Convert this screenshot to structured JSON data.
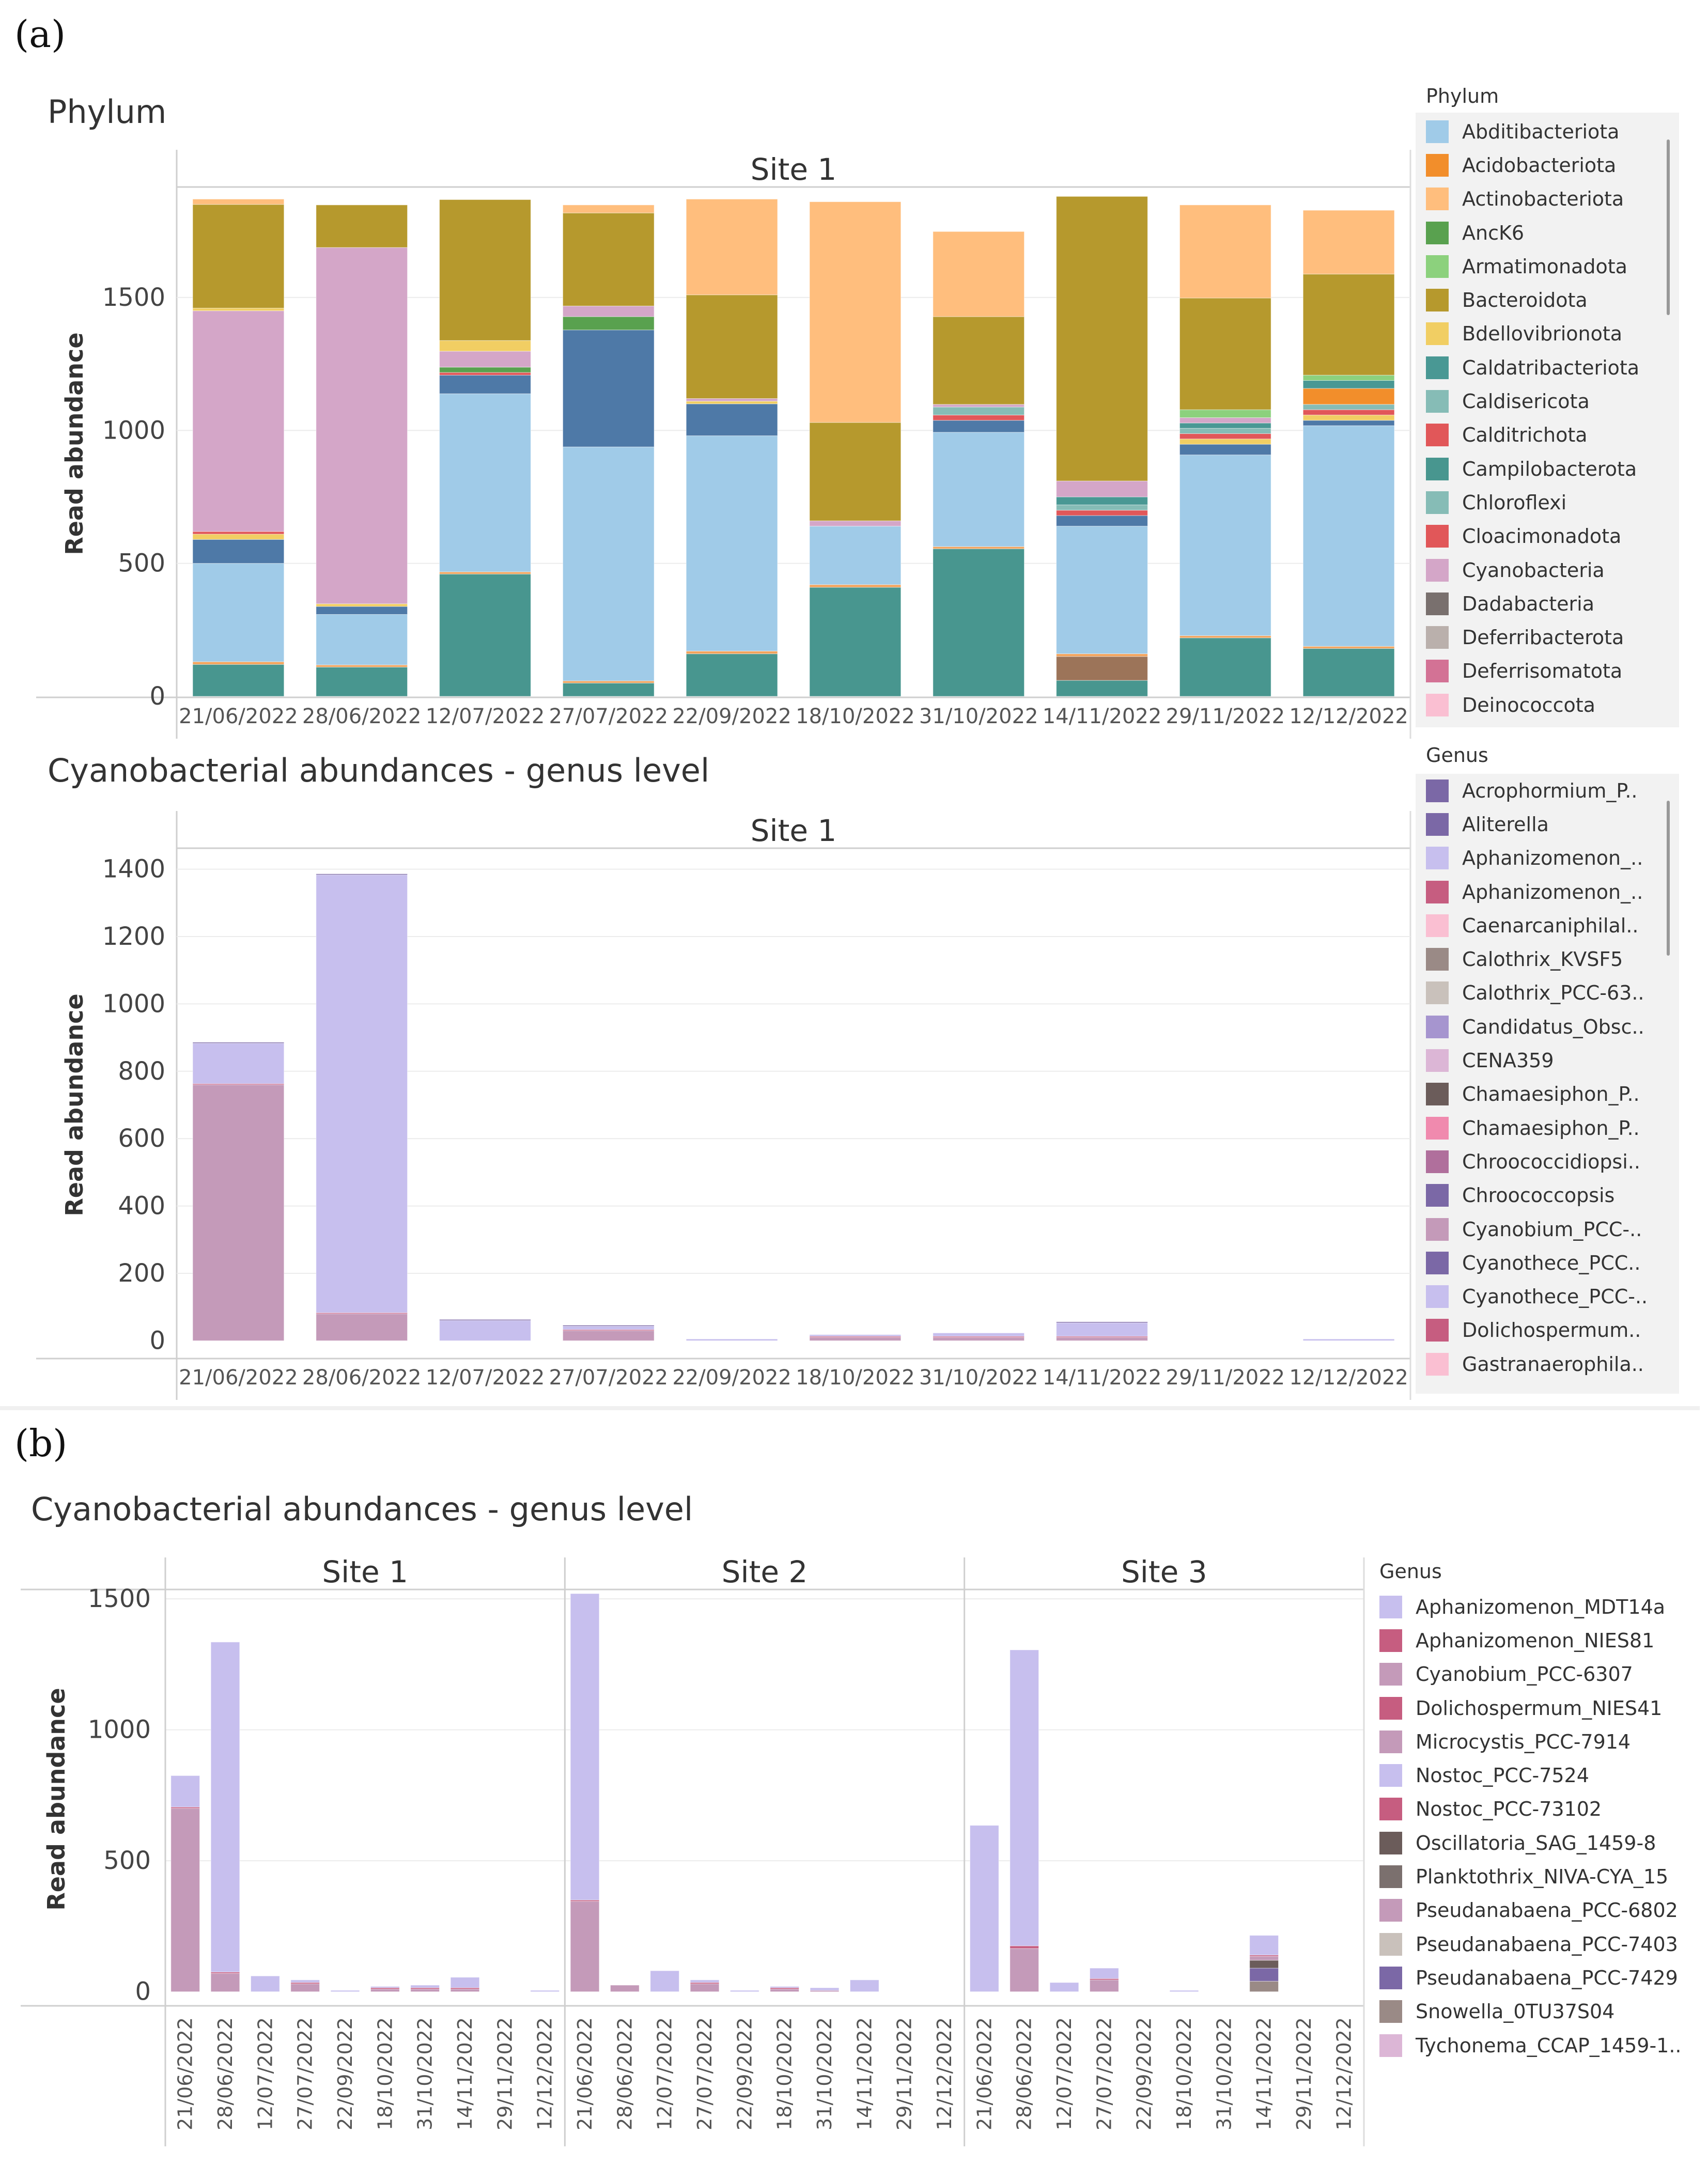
{
  "panel_a": {
    "label": "(a)"
  },
  "panel_b": {
    "label": "(b)"
  },
  "chart_data": [
    {
      "id": "phylum",
      "type": "bar",
      "stacked": true,
      "title": "Phylum",
      "facet": "Site 1",
      "ylabel": "Read abundance",
      "ylim": [
        0,
        1900
      ],
      "yticks": [
        0,
        500,
        1000,
        1500
      ],
      "categories": [
        "21/06/2022",
        "28/06/2022",
        "12/07/2022",
        "27/07/2022",
        "22/09/2022",
        "18/10/2022",
        "31/10/2022",
        "14/11/2022",
        "29/11/2022",
        "12/12/2022"
      ],
      "series": [
        {
          "name": "Campilobacterota",
          "color": "#48968F",
          "values": [
            120,
            110,
            460,
            50,
            160,
            410,
            555,
            60,
            220,
            180
          ]
        },
        {
          "name": "Dadabacteria",
          "color": "#9C7459",
          "values": [
            0,
            0,
            0,
            0,
            0,
            0,
            0,
            90,
            0,
            0
          ]
        },
        {
          "name": "Actinobacteriota",
          "color": "#F2A35C",
          "values": [
            10,
            8,
            8,
            8,
            10,
            10,
            8,
            10,
            8,
            8
          ]
        },
        {
          "name": "Abditibacteriota",
          "color": "#A0CBE8",
          "values": [
            370,
            190,
            670,
            880,
            810,
            220,
            430,
            480,
            680,
            830
          ]
        },
        {
          "name": "Armatimonadota",
          "color": "#4E79A7",
          "values": [
            90,
            30,
            70,
            440,
            120,
            0,
            45,
            40,
            40,
            20
          ]
        },
        {
          "name": "Bdellovibrionota",
          "color": "#F1CE63",
          "values": [
            20,
            10,
            0,
            0,
            10,
            0,
            0,
            0,
            20,
            20
          ]
        },
        {
          "name": "Calditrichota",
          "color": "#E15759",
          "values": [
            10,
            0,
            10,
            0,
            0,
            0,
            20,
            20,
            20,
            20
          ]
        },
        {
          "name": "AncK6",
          "color": "#59A14F",
          "values": [
            0,
            0,
            20,
            50,
            0,
            0,
            0,
            0,
            0,
            0
          ]
        },
        {
          "name": "Caldisericota",
          "color": "#86BCB6",
          "values": [
            0,
            0,
            0,
            0,
            0,
            0,
            30,
            20,
            20,
            20
          ]
        },
        {
          "name": "Acidobacteriota",
          "color": "#F28E2B",
          "values": [
            0,
            0,
            0,
            0,
            0,
            0,
            0,
            0,
            0,
            60
          ]
        },
        {
          "name": "Caldatribacteriota",
          "color": "#499894",
          "values": [
            0,
            0,
            0,
            0,
            0,
            0,
            0,
            30,
            20,
            30
          ]
        },
        {
          "name": "Cyanobacteria",
          "color": "#D4A6C8",
          "values": [
            830,
            1340,
            60,
            40,
            10,
            20,
            10,
            60,
            20,
            0
          ]
        },
        {
          "name": "Bdellovibrionota",
          "color": "#F1CE63",
          "values": [
            10,
            0,
            40,
            0,
            0,
            0,
            0,
            0,
            0,
            0
          ]
        },
        {
          "name": "Armatimonadota",
          "color": "#8CD17D",
          "values": [
            0,
            0,
            0,
            0,
            0,
            0,
            0,
            0,
            30,
            20
          ]
        },
        {
          "name": "Bacteroidota",
          "color": "#B6992D",
          "values": [
            390,
            160,
            530,
            350,
            390,
            370,
            330,
            1070,
            420,
            380
          ]
        },
        {
          "name": "Actinobacteriota",
          "color": "#FFBE7D",
          "values": [
            20,
            0,
            0,
            30,
            360,
            830,
            320,
            0,
            350,
            240
          ]
        }
      ]
    },
    {
      "id": "genus-a",
      "type": "bar",
      "stacked": true,
      "title": "Cyanobacterial abundances - genus level",
      "facet": "Site 1",
      "ylabel": "Read abundance",
      "ylim": [
        -50,
        1450
      ],
      "yticks": [
        0,
        200,
        400,
        600,
        800,
        1000,
        1200,
        1400
      ],
      "categories": [
        "21/06/2022",
        "28/06/2022",
        "12/07/2022",
        "27/07/2022",
        "22/09/2022",
        "18/10/2022",
        "31/10/2022",
        "14/11/2022",
        "29/11/2022",
        "12/12/2022"
      ],
      "series": [
        {
          "name": "Cyanobium_PCC-6307",
          "color": "#C49AB9",
          "values": [
            760,
            80,
            0,
            30,
            0,
            10,
            10,
            10,
            0,
            0
          ]
        },
        {
          "name": "Dolichospermum_NIES41",
          "color": "#C65D80",
          "values": [
            3,
            3,
            0,
            3,
            0,
            3,
            3,
            3,
            0,
            0
          ]
        },
        {
          "name": "Aphanizomenon_MDT14a",
          "color": "#C7BFEE",
          "values": [
            120,
            1300,
            60,
            10,
            5,
            5,
            10,
            40,
            0,
            5
          ]
        },
        {
          "name": "Aliterella",
          "color": "#7B68A6",
          "values": [
            3,
            3,
            3,
            3,
            0,
            0,
            0,
            3,
            0,
            0
          ]
        }
      ]
    },
    {
      "id": "genus-b",
      "type": "bar",
      "stacked": true,
      "title": "Cyanobacterial abundances - genus level",
      "facets": [
        "Site 1",
        "Site 2",
        "Site 3"
      ],
      "ylabel": "Read abundance",
      "ylim": [
        -50,
        1520
      ],
      "yticks": [
        0,
        500,
        1000,
        1500
      ],
      "categories": [
        "21/06/2022",
        "28/06/2022",
        "12/07/2022",
        "27/07/2022",
        "22/09/2022",
        "18/10/2022",
        "31/10/2022",
        "14/11/2022",
        "29/11/2022",
        "12/12/2022"
      ],
      "sites": [
        {
          "name": "Site 1",
          "series": [
            {
              "name": "Pseudanabaena_PCC-6802",
              "color": "#C49AB9",
              "values": [
                700,
                70,
                0,
                30,
                0,
                10,
                10,
                10,
                0,
                0
              ]
            },
            {
              "name": "Nostoc_PCC-73102",
              "color": "#C65D80",
              "values": [
                5,
                5,
                0,
                5,
                0,
                5,
                5,
                5,
                0,
                0
              ]
            },
            {
              "name": "Aphanizomenon_MDT14a",
              "color": "#C7BFEE",
              "values": [
                120,
                1260,
                60,
                10,
                5,
                5,
                10,
                40,
                0,
                5
              ]
            }
          ]
        },
        {
          "name": "Site 2",
          "series": [
            {
              "name": "Pseudanabaena_PCC-6802",
              "color": "#C49AB9",
              "values": [
                345,
                25,
                0,
                30,
                0,
                10,
                5,
                0,
                0,
                0
              ]
            },
            {
              "name": "Nostoc_PCC-73102",
              "color": "#C65D80",
              "values": [
                5,
                0,
                0,
                5,
                0,
                5,
                0,
                0,
                0,
                0
              ]
            },
            {
              "name": "Aphanizomenon_MDT14a",
              "color": "#C7BFEE",
              "values": [
                1170,
                0,
                80,
                10,
                5,
                5,
                10,
                45,
                0,
                0
              ]
            }
          ]
        },
        {
          "name": "Site 3",
          "series": [
            {
              "name": "Snowella_0TU37S04",
              "color": "#9A8A86",
              "values": [
                0,
                0,
                0,
                0,
                0,
                0,
                0,
                40,
                0,
                0
              ]
            },
            {
              "name": "Pseudanabaena_PCC-7429",
              "color": "#7B68A6",
              "values": [
                0,
                0,
                0,
                0,
                0,
                0,
                0,
                50,
                0,
                0
              ]
            },
            {
              "name": "Oscillatoria_SAG_1459-8",
              "color": "#6B5C5A",
              "values": [
                0,
                0,
                0,
                0,
                0,
                0,
                0,
                30,
                0,
                0
              ]
            },
            {
              "name": "Pseudanabaena_PCC-6802",
              "color": "#C49AB9",
              "values": [
                0,
                165,
                0,
                45,
                0,
                0,
                0,
                15,
                0,
                0
              ]
            },
            {
              "name": "Nostoc_PCC-73102",
              "color": "#C65D80",
              "values": [
                0,
                10,
                0,
                5,
                0,
                0,
                0,
                5,
                0,
                0
              ]
            },
            {
              "name": "Aphanizomenon_MDT14a",
              "color": "#C7BFEE",
              "values": [
                635,
                1130,
                35,
                40,
                0,
                5,
                0,
                75,
                0,
                0
              ]
            }
          ]
        }
      ]
    }
  ],
  "legends": {
    "phylum": {
      "title": "Phylum",
      "items": [
        {
          "label": "Abditibacteriota",
          "color": "#A0CBE8"
        },
        {
          "label": "Acidobacteriota",
          "color": "#F28E2B"
        },
        {
          "label": "Actinobacteriota",
          "color": "#FFBE7D"
        },
        {
          "label": "AncK6",
          "color": "#59A14F"
        },
        {
          "label": "Armatimonadota",
          "color": "#8CD17D"
        },
        {
          "label": "Bacteroidota",
          "color": "#B6992D"
        },
        {
          "label": "Bdellovibrionota",
          "color": "#F1CE63"
        },
        {
          "label": "Caldatribacteriota",
          "color": "#499894"
        },
        {
          "label": "Caldisericota",
          "color": "#86BCB6"
        },
        {
          "label": "Calditrichota",
          "color": "#E15759"
        },
        {
          "label": "Campilobacterota",
          "color": "#48968F"
        },
        {
          "label": "Chloroflexi",
          "color": "#86BCB6"
        },
        {
          "label": "Cloacimonadota",
          "color": "#E15759"
        },
        {
          "label": "Cyanobacteria",
          "color": "#D4A6C8"
        },
        {
          "label": "Dadabacteria",
          "color": "#79706E"
        },
        {
          "label": "Deferribacterota",
          "color": "#BAB0AC"
        },
        {
          "label": "Deferrisomatota",
          "color": "#D37295"
        },
        {
          "label": "Deinococcota",
          "color": "#FABFD2"
        }
      ]
    },
    "genus_a": {
      "title": "Genus",
      "items": [
        {
          "label": "Acrophormium_P..",
          "color": "#7B68A6"
        },
        {
          "label": "Aliterella",
          "color": "#7B68A6"
        },
        {
          "label": "Aphanizomenon_..",
          "color": "#C7BFEE"
        },
        {
          "label": "Aphanizomenon_..",
          "color": "#C65D80"
        },
        {
          "label": "Caenarcaniphilal..",
          "color": "#FABFD2"
        },
        {
          "label": "Calothrix_KVSF5",
          "color": "#9A8A86"
        },
        {
          "label": "Calothrix_PCC-63..",
          "color": "#C9C1BB"
        },
        {
          "label": "Candidatus_Obsc..",
          "color": "#A695CF"
        },
        {
          "label": "CENA359",
          "color": "#DCB6D6"
        },
        {
          "label": "Chamaesiphon_P..",
          "color": "#6B5C5A"
        },
        {
          "label": "Chamaesiphon_P..",
          "color": "#F08AAE"
        },
        {
          "label": "Chroococcidiopsi..",
          "color": "#B06F9C"
        },
        {
          "label": "Chroococcopsis",
          "color": "#7B68A6"
        },
        {
          "label": "Cyanobium_PCC-..",
          "color": "#C49AB9"
        },
        {
          "label": "Cyanothece_PCC..",
          "color": "#7B68A6"
        },
        {
          "label": "Cyanothece_PCC-..",
          "color": "#C7BFEE"
        },
        {
          "label": "Dolichospermum..",
          "color": "#C65D80"
        },
        {
          "label": "Gastranaerophila..",
          "color": "#FABFD2"
        }
      ]
    },
    "genus_b": {
      "title": "Genus",
      "items": [
        {
          "label": "Aphanizomenon_MDT14a",
          "color": "#C7BFEE"
        },
        {
          "label": "Aphanizomenon_NIES81",
          "color": "#C65D80"
        },
        {
          "label": "Cyanobium_PCC-6307",
          "color": "#C49AB9"
        },
        {
          "label": "Dolichospermum_NIES41",
          "color": "#C65D80"
        },
        {
          "label": "Microcystis_PCC-7914",
          "color": "#C49AB9"
        },
        {
          "label": "Nostoc_PCC-7524",
          "color": "#C7BFEE"
        },
        {
          "label": "Nostoc_PCC-73102",
          "color": "#C65D80"
        },
        {
          "label": "Oscillatoria_SAG_1459-8",
          "color": "#6B5C5A"
        },
        {
          "label": "Planktothrix_NIVA-CYA_15",
          "color": "#7B706E"
        },
        {
          "label": "Pseudanabaena_PCC-6802",
          "color": "#C49AB9"
        },
        {
          "label": "Pseudanabaena_PCC-7403",
          "color": "#C9C1BB"
        },
        {
          "label": "Pseudanabaena_PCC-7429",
          "color": "#7B68A6"
        },
        {
          "label": "Snowella_0TU37S04",
          "color": "#9A8A86"
        },
        {
          "label": "Tychonema_CCAP_1459-1..",
          "color": "#DCB6D6"
        }
      ]
    }
  }
}
